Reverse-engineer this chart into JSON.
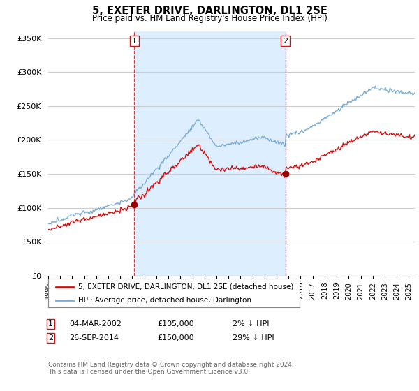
{
  "title": "5, EXETER DRIVE, DARLINGTON, DL1 2SE",
  "subtitle": "Price paid vs. HM Land Registry's House Price Index (HPI)",
  "ylabel_ticks": [
    "£0",
    "£50K",
    "£100K",
    "£150K",
    "£200K",
    "£250K",
    "£300K",
    "£350K"
  ],
  "ytick_values": [
    0,
    50000,
    100000,
    150000,
    200000,
    250000,
    300000,
    350000
  ],
  "ylim": [
    0,
    360000
  ],
  "xlim_start": 1995.0,
  "xlim_end": 2025.5,
  "hpi_color": "#7aadd4",
  "price_color": "#cc1111",
  "marker_color": "#990000",
  "vline_color": "#cc1111",
  "shade_color": "#ddeeff",
  "background_color": "#ffffff",
  "grid_color": "#cccccc",
  "transaction1": {
    "date_num": 2002.17,
    "price": 105000,
    "label": "1",
    "text": "04-MAR-2002",
    "amount": "£105,000",
    "pct": "2% ↓ HPI"
  },
  "transaction2": {
    "date_num": 2014.73,
    "price": 150000,
    "label": "2",
    "text": "26-SEP-2014",
    "amount": "£150,000",
    "pct": "29% ↓ HPI"
  },
  "legend_line1": "5, EXETER DRIVE, DARLINGTON, DL1 2SE (detached house)",
  "legend_line2": "HPI: Average price, detached house, Darlington",
  "footnote": "Contains HM Land Registry data © Crown copyright and database right 2024.\nThis data is licensed under the Open Government Licence v3.0.",
  "xtick_years": [
    1995,
    1996,
    1997,
    1998,
    1999,
    2000,
    2001,
    2002,
    2003,
    2004,
    2005,
    2006,
    2007,
    2008,
    2009,
    2010,
    2011,
    2012,
    2013,
    2014,
    2015,
    2016,
    2017,
    2018,
    2019,
    2020,
    2021,
    2022,
    2023,
    2024,
    2025
  ]
}
